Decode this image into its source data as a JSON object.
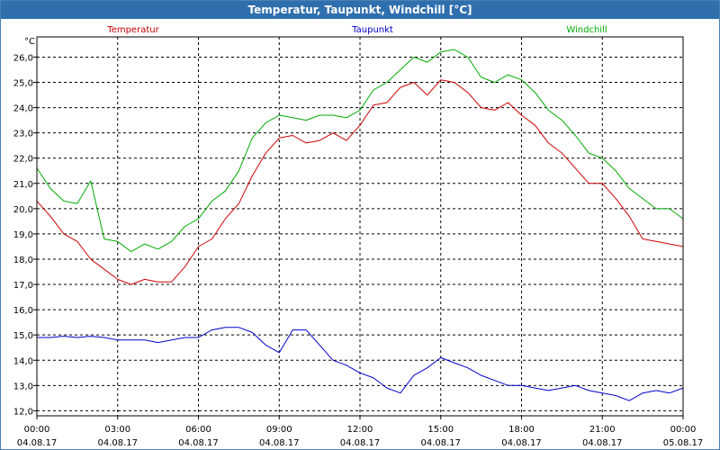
{
  "window": {
    "title": "Temperatur, Taupunkt, Windchill [°C]"
  },
  "colors": {
    "title_bar": "#2f6fae",
    "temperature": "#cc0000",
    "dewpoint": "#0000cc",
    "windchill": "#00aa00",
    "grid": "#000000"
  },
  "chart_data": {
    "type": "line",
    "title": "Temperatur, Taupunkt, Windchill [°C]",
    "ylabel": "°C",
    "xlabel": "",
    "ylim": [
      11.8,
      26.8
    ],
    "xlim": [
      0,
      24
    ],
    "grid": true,
    "legend_placement": "top",
    "y_ticks": [
      "12,0",
      "13,0",
      "14,0",
      "15,0",
      "16,0",
      "17,0",
      "18,0",
      "19,0",
      "20,0",
      "21,0",
      "22,0",
      "23,0",
      "24,0",
      "25,0",
      "26,0"
    ],
    "x_ticks": [
      {
        "time": "00:00",
        "date": "04.08.17"
      },
      {
        "time": "03:00",
        "date": "04.08.17"
      },
      {
        "time": "06:00",
        "date": "04.08.17"
      },
      {
        "time": "09:00",
        "date": "04.08.17"
      },
      {
        "time": "12:00",
        "date": "04.08.17"
      },
      {
        "time": "15:00",
        "date": "04.08.17"
      },
      {
        "time": "18:00",
        "date": "04.08.17"
      },
      {
        "time": "21:00",
        "date": "04.08.17"
      },
      {
        "time": "00:00",
        "date": "05.08.17"
      }
    ],
    "x": [
      0,
      0.5,
      1,
      1.5,
      2,
      2.5,
      3,
      3.5,
      4,
      4.5,
      5,
      5.5,
      6,
      6.5,
      7,
      7.5,
      8,
      8.5,
      9,
      9.5,
      10,
      10.5,
      11,
      11.5,
      12,
      12.5,
      13,
      13.5,
      14,
      14.5,
      15,
      15.5,
      16,
      16.5,
      17,
      17.5,
      18,
      18.5,
      19,
      19.5,
      20,
      20.5,
      21,
      21.5,
      22,
      22.5,
      23,
      23.5,
      24
    ],
    "series": [
      {
        "name": "Temperatur",
        "color": "#cc0000",
        "values": [
          20.3,
          19.7,
          19.0,
          18.7,
          18.0,
          17.6,
          17.2,
          17.0,
          17.2,
          17.1,
          17.1,
          17.7,
          18.5,
          18.8,
          19.6,
          20.2,
          21.3,
          22.2,
          22.8,
          22.9,
          22.6,
          22.7,
          23.0,
          22.7,
          23.3,
          24.1,
          24.2,
          24.8,
          25.0,
          24.5,
          25.1,
          25.0,
          24.6,
          24.0,
          23.9,
          24.2,
          23.7,
          23.3,
          22.6,
          22.2,
          21.6,
          21.0,
          21.0,
          20.4,
          19.7,
          18.8,
          18.7,
          18.6,
          18.5
        ]
      },
      {
        "name": "Taupunkt",
        "color": "#0000cc",
        "values": [
          14.9,
          14.9,
          14.95,
          14.9,
          14.95,
          14.9,
          14.8,
          14.8,
          14.8,
          14.7,
          14.8,
          14.9,
          14.9,
          15.2,
          15.3,
          15.3,
          15.1,
          14.6,
          14.3,
          15.2,
          15.2,
          14.6,
          14.0,
          13.8,
          13.5,
          13.3,
          12.9,
          12.7,
          13.4,
          13.7,
          14.1,
          13.9,
          13.7,
          13.4,
          13.2,
          13.0,
          13.0,
          12.9,
          12.8,
          12.9,
          13.0,
          12.8,
          12.7,
          12.6,
          12.4,
          12.7,
          12.8,
          12.7,
          12.9
        ]
      },
      {
        "name": "Windchill",
        "color": "#00aa00",
        "values": [
          21.6,
          20.8,
          20.3,
          20.2,
          21.1,
          18.8,
          18.7,
          18.3,
          18.6,
          18.4,
          18.7,
          19.3,
          19.6,
          20.3,
          20.7,
          21.5,
          22.8,
          23.4,
          23.7,
          23.6,
          23.5,
          23.7,
          23.7,
          23.6,
          23.9,
          24.7,
          25.0,
          25.5,
          26.0,
          25.8,
          26.2,
          26.3,
          26.0,
          25.2,
          25.0,
          25.3,
          25.1,
          24.6,
          23.9,
          23.5,
          22.9,
          22.2,
          22.0,
          21.5,
          20.8,
          20.4,
          20.0,
          20.0,
          19.6
        ]
      }
    ]
  }
}
